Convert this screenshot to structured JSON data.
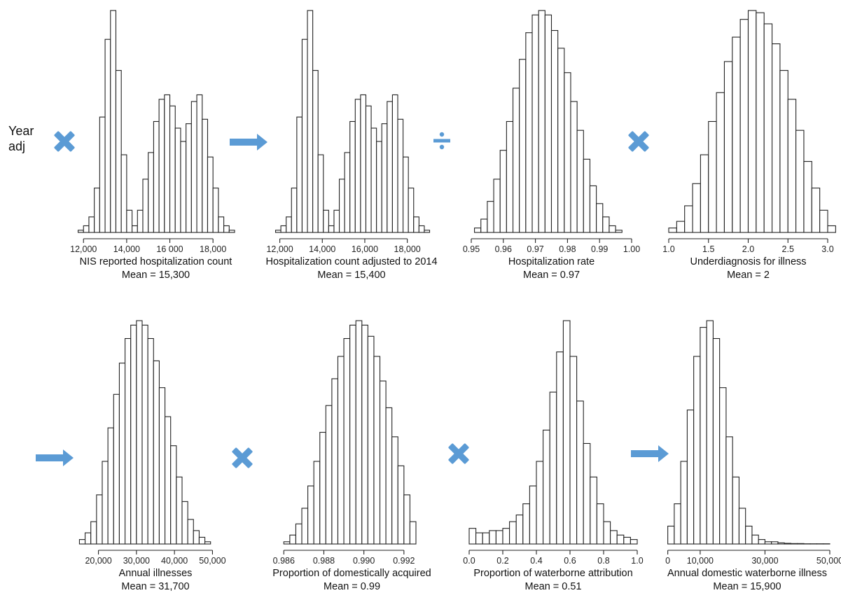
{
  "colors": {
    "operator": "#5b9bd5",
    "bar_fill": "#ffffff",
    "bar_stroke": "#222222"
  },
  "prefix": {
    "line1": "Year",
    "line2": "adj"
  },
  "operators": [
    {
      "symbol": "multiply",
      "icon": "multiply-icon"
    },
    {
      "symbol": "arrow",
      "icon": "right-arrow-icon"
    },
    {
      "symbol": "divide",
      "icon": "divide-icon"
    },
    {
      "symbol": "multiply",
      "icon": "multiply-icon"
    },
    {
      "symbol": "arrow",
      "icon": "right-arrow-icon"
    },
    {
      "symbol": "multiply",
      "icon": "multiply-icon"
    },
    {
      "symbol": "multiply",
      "icon": "multiply-icon"
    },
    {
      "symbol": "arrow",
      "icon": "right-arrow-icon"
    }
  ],
  "chart_data": [
    {
      "type": "bar",
      "xlabel": "NIS reported hospitalization count",
      "mean_label": "Mean = 15,300",
      "xlim": [
        11700,
        19000
      ],
      "ylim": [
        0,
        1.0
      ],
      "bin_start": 11750,
      "bin_width": 250,
      "values": [
        0.01,
        0.03,
        0.07,
        0.2,
        0.52,
        0.87,
        1.0,
        0.73,
        0.35,
        0.1,
        0.03,
        0.1,
        0.24,
        0.36,
        0.5,
        0.6,
        0.62,
        0.57,
        0.47,
        0.41,
        0.49,
        0.59,
        0.62,
        0.51,
        0.34,
        0.2,
        0.07,
        0.03,
        0.01
      ],
      "ticks": [
        12000,
        14000,
        16000,
        18000
      ],
      "tick_labels": [
        "12,000",
        "14,000",
        "16 000",
        "18,000"
      ]
    },
    {
      "type": "bar",
      "xlabel": "Hospitalization count adjusted to 2014",
      "mean_label": "Mean = 15,400",
      "xlim": [
        11750,
        19000
      ],
      "ylim": [
        0,
        1.0
      ],
      "bin_start": 11800,
      "bin_width": 250,
      "values": [
        0.01,
        0.03,
        0.07,
        0.2,
        0.52,
        0.87,
        1.0,
        0.73,
        0.35,
        0.1,
        0.03,
        0.1,
        0.24,
        0.36,
        0.5,
        0.6,
        0.62,
        0.57,
        0.47,
        0.41,
        0.49,
        0.59,
        0.62,
        0.51,
        0.34,
        0.2,
        0.07,
        0.03,
        0.01
      ],
      "ticks": [
        12000,
        14000,
        16000,
        18000
      ],
      "tick_labels": [
        "12,000",
        "14,000",
        "16,000",
        "18,000"
      ]
    },
    {
      "type": "bar",
      "xlabel": "Hospitalization rate",
      "mean_label": "Mean = 0.97",
      "xlim": [
        0.95,
        1.0
      ],
      "ylim": [
        0,
        1.0
      ],
      "bin_start": 0.951,
      "bin_width": 0.002,
      "values": [
        0.02,
        0.06,
        0.14,
        0.24,
        0.37,
        0.5,
        0.65,
        0.78,
        0.9,
        0.98,
        1.0,
        0.98,
        0.91,
        0.83,
        0.72,
        0.59,
        0.46,
        0.33,
        0.21,
        0.13,
        0.07,
        0.03,
        0.01
      ],
      "ticks": [
        0.95,
        0.96,
        0.97,
        0.98,
        0.99,
        1.0
      ],
      "tick_labels": [
        "0.95",
        "0.96",
        "0.97",
        "0.98",
        "0.99",
        "1.00"
      ]
    },
    {
      "type": "bar",
      "xlabel": "Underdiagnosis for illness",
      "mean_label": "Mean = 2",
      "xlim": [
        1.0,
        3.0
      ],
      "ylim": [
        0,
        1.0
      ],
      "bin_start": 1.0,
      "bin_width": 0.1,
      "values": [
        0.02,
        0.05,
        0.12,
        0.22,
        0.35,
        0.5,
        0.63,
        0.77,
        0.88,
        0.96,
        1.0,
        0.99,
        0.94,
        0.85,
        0.73,
        0.6,
        0.46,
        0.32,
        0.2,
        0.1,
        0.03
      ],
      "ticks": [
        1.0,
        1.5,
        2.0,
        2.5,
        3.0
      ],
      "tick_labels": [
        "1.0",
        "1.5",
        "2.0",
        "2.5",
        "3.0"
      ]
    },
    {
      "type": "bar",
      "xlabel": "Annual illnesses",
      "mean_label": "Mean = 31,700",
      "xlim": [
        14000,
        56000
      ],
      "ylim": [
        0,
        1.0
      ],
      "bin_start": 15000,
      "bin_width": 1500,
      "values": [
        0.02,
        0.05,
        0.1,
        0.22,
        0.37,
        0.52,
        0.67,
        0.81,
        0.92,
        0.98,
        1.0,
        0.98,
        0.92,
        0.82,
        0.7,
        0.57,
        0.44,
        0.3,
        0.19,
        0.11,
        0.06,
        0.03,
        0.01
      ],
      "ticks": [
        20000,
        30000,
        40000,
        50000
      ],
      "tick_labels": [
        "20,000",
        "30,000",
        "40,000",
        "50,000"
      ]
    },
    {
      "type": "bar",
      "xlabel": "Proportion of domestically acquired",
      "mean_label": "Mean = 0.99",
      "xlim": [
        0.9855,
        0.9933
      ],
      "ylim": [
        0,
        1.0
      ],
      "bin_start": 0.986,
      "bin_width": 0.0003,
      "values": [
        0.01,
        0.04,
        0.09,
        0.16,
        0.26,
        0.37,
        0.5,
        0.62,
        0.74,
        0.84,
        0.92,
        0.98,
        1.0,
        0.98,
        0.93,
        0.84,
        0.73,
        0.61,
        0.48,
        0.35,
        0.22,
        0.1
      ],
      "ticks": [
        0.986,
        0.988,
        0.99,
        0.992
      ],
      "tick_labels": [
        "0.986",
        "0.988",
        "0.990",
        "0.992"
      ]
    },
    {
      "type": "bar",
      "xlabel": "Proportion of waterborne attribution",
      "mean_label": "Mean = 0.51",
      "xlim": [
        0.0,
        1.0
      ],
      "ylim": [
        0,
        1.0
      ],
      "bin_start": 0.0,
      "bin_width": 0.04,
      "values": [
        0.07,
        0.05,
        0.05,
        0.06,
        0.06,
        0.07,
        0.1,
        0.13,
        0.18,
        0.26,
        0.37,
        0.51,
        0.68,
        0.86,
        1.0,
        0.84,
        0.64,
        0.45,
        0.3,
        0.18,
        0.1,
        0.06,
        0.04,
        0.03,
        0.02
      ],
      "ticks": [
        0.0,
        0.2,
        0.4,
        0.6,
        0.8,
        1.0
      ],
      "tick_labels": [
        "0.0",
        "0.2",
        "0.4",
        "0.6",
        "0.8",
        "1.0"
      ]
    },
    {
      "type": "bar",
      "xlabel": "Annual domestic waterborne illness",
      "mean_label": "Mean = 15,900",
      "xlim": [
        -1000,
        50000
      ],
      "ylim": [
        0,
        1.0
      ],
      "bin_start": 0,
      "bin_width": 2000,
      "values": [
        0.08,
        0.18,
        0.37,
        0.6,
        0.84,
        0.97,
        1.0,
        0.92,
        0.7,
        0.48,
        0.3,
        0.16,
        0.08,
        0.04,
        0.02,
        0.01,
        0.01,
        0.005,
        0.003,
        0.002,
        0.002,
        0.001,
        0.001,
        0.001,
        0.001
      ],
      "ticks": [
        0,
        10000,
        30000,
        50000
      ],
      "tick_labels": [
        "0",
        "10,000",
        "30,000",
        "50,000"
      ]
    }
  ]
}
